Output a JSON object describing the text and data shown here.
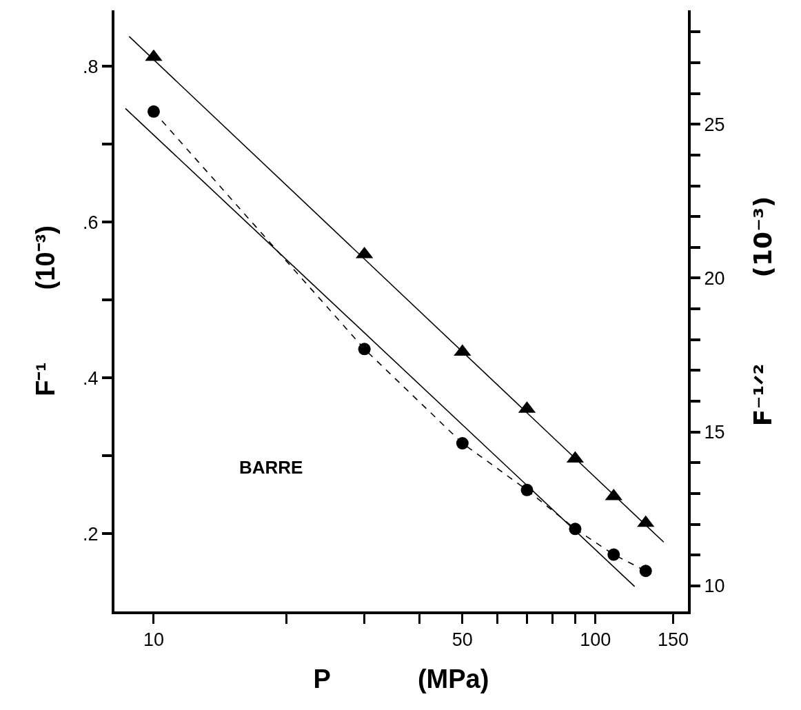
{
  "chart_data": {
    "type": "line",
    "xlabel": "P            (MPa)",
    "ylabel": "F⁻¹          (10⁻³)",
    "y2label": "F⁻¹ᐟ²          (10⁻³)",
    "annotations": [
      "BARRE"
    ],
    "log": "x",
    "xlim": [
      8.15,
      162
    ],
    "xticks": [
      10,
      {
        "value": 20,
        "label": null
      },
      {
        "value": 30,
        "label": null
      },
      {
        "value": 40,
        "label": null
      },
      50,
      {
        "value": 60,
        "label": null
      },
      {
        "value": 70,
        "label": null
      },
      {
        "value": 80,
        "label": null
      },
      {
        "value": 90,
        "label": null
      },
      100,
      150
    ],
    "ylim": [
      0.1,
      0.872
    ],
    "yticks": [
      {
        "value": 0.2,
        "label": ".2"
      },
      {
        "value": 0.3,
        "label": null
      },
      {
        "value": 0.4,
        "label": ".4"
      },
      {
        "value": 0.5,
        "label": null
      },
      {
        "value": 0.6,
        "label": ".6"
      },
      {
        "value": 0.7,
        "label": null
      },
      {
        "value": 0.8,
        "label": ".8"
      }
    ],
    "y2lim": [
      9.17,
      28.7
    ],
    "y2ticks": [
      10,
      {
        "value": 11,
        "label": null
      },
      {
        "value": 12,
        "label": null
      },
      {
        "value": 13,
        "label": null
      },
      {
        "value": 14,
        "label": null
      },
      15,
      {
        "value": 16,
        "label": null
      },
      {
        "value": 17,
        "label": null
      },
      {
        "value": 18,
        "label": null
      },
      {
        "value": 19,
        "label": null
      },
      20,
      {
        "value": 21,
        "label": null
      },
      {
        "value": 22,
        "label": null
      },
      {
        "value": 23,
        "label": null
      },
      {
        "value": 24,
        "label": null
      },
      25,
      {
        "value": 26,
        "label": null
      },
      {
        "value": 27,
        "label": null
      },
      {
        "value": 28,
        "label": null
      }
    ],
    "series": [
      {
        "color": "#000000",
        "marker": "circle",
        "line_style": "dashed",
        "x": [
          10,
          30,
          50,
          70,
          90,
          110,
          130
        ],
        "values": [
          0.742,
          0.437,
          0.316,
          0.256,
          0.206,
          0.173,
          0.152
        ]
      },
      {
        "color": "#000000",
        "marker": "none",
        "line_style": "solid",
        "x": [
          8.63,
          122.7
        ],
        "values": [
          0.746,
          0.132
        ]
      },
      {
        "type": "scatter",
        "color": "#000000",
        "marker": "triangle",
        "axis": "y2",
        "x": [
          10,
          30,
          50,
          70,
          90,
          110,
          130
        ],
        "values": [
          27.18,
          20.77,
          17.6,
          15.75,
          14.13,
          12.91,
          12.04
        ]
      },
      {
        "color": "#000000",
        "marker": "none",
        "line_style": "solid",
        "axis": "y2",
        "x": [
          8.8,
          142.8
        ],
        "values": [
          27.85,
          11.42
        ]
      }
    ]
  }
}
